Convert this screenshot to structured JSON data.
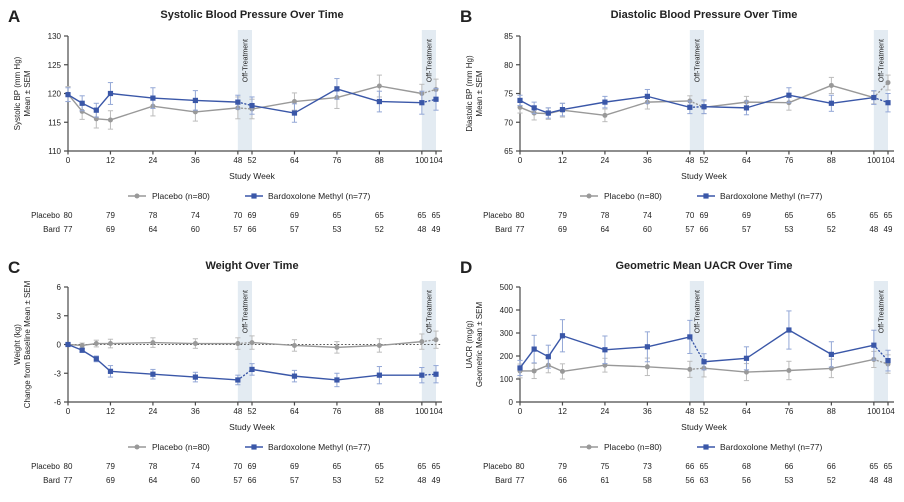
{
  "figure": {
    "xlabel": "Study Week",
    "band_label": "Off-Treatment",
    "weeks": [
      0,
      4,
      8,
      12,
      24,
      36,
      48,
      52,
      64,
      76,
      88,
      100,
      104
    ],
    "xticks": [
      0,
      12,
      24,
      36,
      48,
      52,
      64,
      76,
      88,
      100,
      104
    ],
    "off_treatment_bands": [
      [
        48,
        52
      ],
      [
        100,
        104
      ]
    ],
    "legend": [
      {
        "key": "placebo",
        "label": "Placebo (n=80)",
        "marker": "circle"
      },
      {
        "key": "bard",
        "label": "Bardoxolone Methyl (n=77)",
        "marker": "square"
      }
    ],
    "table_row_labels": [
      "Placebo",
      "Bard"
    ],
    "colors": {
      "placebo": "#999999",
      "placebo_err": "#bcbcbc",
      "bard": "#3a57a8",
      "bard_err": "#93a7d6",
      "band_fill": "#e3ebf2",
      "axis": "#4a4a4a",
      "refline": "#555555",
      "title_text": "#1a1a1a",
      "tick_text": "#333333"
    }
  },
  "chart_data": [
    {
      "type": "line",
      "panel_label": "A",
      "title": "Systolic Blood Pressure Over Time",
      "ylabel_lines": [
        "Systolic BP (mm Hg)",
        "Mean ± SEM"
      ],
      "ylim": [
        110,
        130
      ],
      "yticks": [
        110,
        115,
        120,
        125,
        130
      ],
      "zero_refline": false,
      "x": [
        0,
        4,
        8,
        12,
        24,
        36,
        48,
        52,
        64,
        76,
        88,
        100,
        104
      ],
      "series": [
        {
          "name": "Placebo (n=80)",
          "key": "placebo",
          "marker": "circle",
          "values": [
            119.9,
            116.9,
            115.6,
            115.4,
            117.8,
            116.8,
            117.5,
            117.3,
            118.6,
            119.3,
            121.3,
            120.0,
            120.7
          ],
          "sem": [
            1.3,
            1.4,
            1.6,
            1.6,
            1.7,
            1.6,
            1.9,
            1.7,
            1.5,
            1.9,
            1.9,
            1.6,
            1.8
          ]
        },
        {
          "name": "Bardoxolone Methyl (n=77)",
          "key": "bard",
          "marker": "square",
          "values": [
            119.8,
            118.3,
            117.1,
            120.0,
            119.2,
            118.8,
            118.5,
            117.9,
            116.6,
            120.8,
            118.6,
            118.4,
            119.0
          ],
          "sem": [
            1.2,
            1.3,
            1.2,
            1.9,
            1.8,
            1.7,
            1.2,
            1.5,
            1.6,
            1.8,
            1.8,
            2.0,
            1.9
          ]
        }
      ],
      "table_weeks": [
        0,
        12,
        24,
        36,
        48,
        52,
        64,
        76,
        88,
        100,
        104
      ],
      "table": [
        [
          80,
          79,
          78,
          74,
          70,
          69,
          69,
          65,
          65,
          65,
          65
        ],
        [
          77,
          69,
          64,
          60,
          57,
          66,
          57,
          53,
          52,
          48,
          49
        ]
      ]
    },
    {
      "type": "line",
      "panel_label": "B",
      "title": "Diastolic Blood Pressure Over Time",
      "ylabel_lines": [
        "Diastolic BP (mm Hg)",
        "Mean ± SEM"
      ],
      "ylim": [
        65,
        85
      ],
      "yticks": [
        65,
        70,
        75,
        80,
        85
      ],
      "zero_refline": false,
      "x": [
        0,
        4,
        8,
        12,
        24,
        36,
        48,
        52,
        64,
        76,
        88,
        100,
        104
      ],
      "series": [
        {
          "name": "Placebo (n=80)",
          "key": "placebo",
          "marker": "circle",
          "values": [
            72.6,
            71.6,
            71.5,
            72.1,
            71.2,
            73.5,
            73.7,
            72.6,
            73.5,
            73.4,
            76.4,
            74.3,
            76.9
          ],
          "sem": [
            1.0,
            1.2,
            1.0,
            1.2,
            1.1,
            1.2,
            0.9,
            1.1,
            1.0,
            1.3,
            1.4,
            1.1,
            1.3
          ]
        },
        {
          "name": "Bardoxolone Methyl (n=77)",
          "key": "bard",
          "marker": "square",
          "values": [
            73.8,
            72.5,
            71.6,
            72.2,
            73.5,
            74.5,
            72.6,
            72.7,
            72.5,
            74.7,
            73.3,
            74.3,
            73.4
          ],
          "sem": [
            0.9,
            1.0,
            0.9,
            1.1,
            1.0,
            1.2,
            1.1,
            1.2,
            1.2,
            1.3,
            1.4,
            1.2,
            1.6
          ]
        }
      ],
      "table_weeks": [
        0,
        12,
        24,
        36,
        48,
        52,
        64,
        76,
        88,
        100,
        104
      ],
      "table": [
        [
          80,
          79,
          78,
          74,
          70,
          69,
          69,
          65,
          65,
          65,
          65
        ],
        [
          77,
          69,
          64,
          60,
          57,
          66,
          57,
          53,
          52,
          48,
          49
        ]
      ]
    },
    {
      "type": "line",
      "panel_label": "C",
      "title": "Weight Over Time",
      "ylabel_lines": [
        "Weight (kg)",
        "Change from Baseline Mean ± SEM"
      ],
      "ylim": [
        -6,
        6
      ],
      "yticks": [
        -6,
        -3,
        0,
        3,
        6
      ],
      "zero_refline": true,
      "x": [
        0,
        4,
        8,
        12,
        24,
        36,
        48,
        52,
        64,
        76,
        88,
        100,
        104
      ],
      "series": [
        {
          "name": "Placebo (n=80)",
          "key": "placebo",
          "marker": "circle",
          "values": [
            0.0,
            -0.1,
            0.1,
            0.1,
            0.2,
            0.1,
            0.1,
            0.2,
            -0.1,
            -0.3,
            -0.1,
            0.3,
            0.5
          ],
          "sem": [
            0.15,
            0.25,
            0.35,
            0.45,
            0.5,
            0.5,
            0.6,
            0.7,
            0.6,
            0.6,
            0.7,
            0.8,
            0.9
          ]
        },
        {
          "name": "Bardoxolone Methyl (n=77)",
          "key": "bard",
          "marker": "square",
          "values": [
            0.0,
            -0.6,
            -1.5,
            -2.8,
            -3.1,
            -3.4,
            -3.7,
            -2.6,
            -3.3,
            -3.7,
            -3.2,
            -3.2,
            -3.1
          ],
          "sem": [
            0.1,
            0.2,
            0.3,
            0.6,
            0.5,
            0.5,
            0.5,
            0.6,
            0.6,
            0.7,
            0.9,
            0.8,
            0.9
          ]
        }
      ],
      "table_weeks": [
        0,
        12,
        24,
        36,
        48,
        52,
        64,
        76,
        88,
        100,
        104
      ],
      "table": [
        [
          80,
          79,
          78,
          74,
          70,
          69,
          69,
          65,
          65,
          65,
          65
        ],
        [
          77,
          69,
          64,
          60,
          57,
          66,
          57,
          53,
          52,
          48,
          49
        ]
      ]
    },
    {
      "type": "line",
      "panel_label": "D",
      "title": "Geometric Mean UACR Over Time",
      "ylabel_lines": [
        "UACR (mg/g)",
        "Geometric Mean ± SEM"
      ],
      "ylim": [
        0,
        500
      ],
      "yticks": [
        0,
        100,
        200,
        300,
        400,
        500
      ],
      "zero_refline": false,
      "x": [
        0,
        4,
        8,
        12,
        24,
        36,
        48,
        52,
        64,
        76,
        88,
        100,
        104
      ],
      "series": [
        {
          "name": "Placebo (n=80)",
          "key": "placebo",
          "marker": "circle",
          "values": [
            135,
            135,
            160,
            133,
            160,
            153,
            142,
            147,
            130,
            137,
            146,
            185,
            165
          ],
          "sem": [
            30,
            33,
            33,
            33,
            30,
            38,
            35,
            38,
            37,
            40,
            40,
            35,
            40
          ]
        },
        {
          "name": "Bardoxolone Methyl (n=77)",
          "key": "bard",
          "marker": "square",
          "values": [
            148,
            230,
            197,
            288,
            227,
            240,
            283,
            175,
            190,
            313,
            207,
            247,
            180
          ],
          "sem": [
            33,
            60,
            50,
            70,
            60,
            65,
            72,
            35,
            50,
            83,
            55,
            65,
            45
          ]
        }
      ],
      "table_weeks": [
        0,
        12,
        24,
        36,
        48,
        52,
        64,
        76,
        88,
        100,
        104
      ],
      "table": [
        [
          80,
          79,
          75,
          73,
          66,
          65,
          68,
          66,
          66,
          65,
          65
        ],
        [
          77,
          66,
          61,
          58,
          56,
          63,
          56,
          53,
          52,
          48,
          48
        ]
      ]
    }
  ]
}
